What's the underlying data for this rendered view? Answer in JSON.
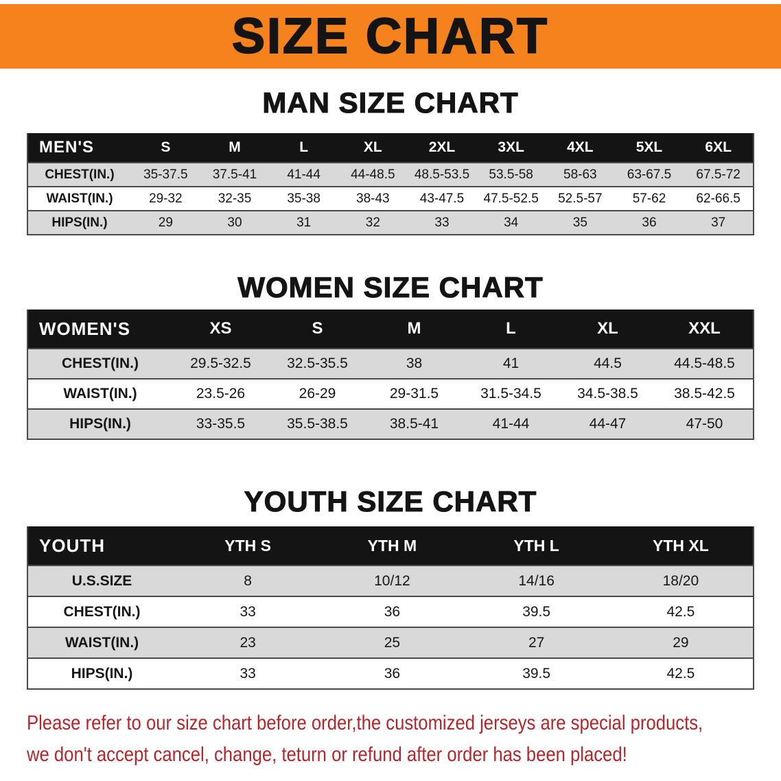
{
  "banner": {
    "title": "SIZE CHART"
  },
  "men": {
    "heading": "MAN SIZE CHART",
    "header": [
      "MEN'S",
      "S",
      "M",
      "L",
      "XL",
      "2XL",
      "3XL",
      "4XL",
      "5XL",
      "6XL"
    ],
    "rows": [
      {
        "label": "CHEST(IN.)",
        "values": [
          "35-37.5",
          "37.5-41",
          "41-44",
          "44-48.5",
          "48.5-53.5",
          "53.5-58",
          "58-63",
          "63-67.5",
          "67.5-72"
        ]
      },
      {
        "label": "WAIST(IN.)",
        "values": [
          "29-32",
          "32-35",
          "35-38",
          "38-43",
          "43-47.5",
          "47.5-52.5",
          "52.5-57",
          "57-62",
          "62-66.5"
        ]
      },
      {
        "label": "HIPS(IN.)",
        "values": [
          "29",
          "30",
          "31",
          "32",
          "33",
          "34",
          "35",
          "36",
          "37"
        ]
      }
    ]
  },
  "women": {
    "heading": "WOMEN SIZE CHART",
    "header": [
      "WOMEN'S",
      "XS",
      "S",
      "M",
      "L",
      "XL",
      "XXL"
    ],
    "rows": [
      {
        "label": "CHEST(IN.)",
        "values": [
          "29.5-32.5",
          "32.5-35.5",
          "38",
          "41",
          "44.5",
          "44.5-48.5"
        ]
      },
      {
        "label": "WAIST(IN.)",
        "values": [
          "23.5-26",
          "26-29",
          "29-31.5",
          "31.5-34.5",
          "34.5-38.5",
          "38.5-42.5"
        ]
      },
      {
        "label": "HIPS(IN.)",
        "values": [
          "33-35.5",
          "35.5-38.5",
          "38.5-41",
          "41-44",
          "44-47",
          "47-50"
        ]
      }
    ]
  },
  "youth": {
    "heading": "YOUTH SIZE CHART",
    "header": [
      "YOUTH",
      "YTH S",
      "YTH M",
      "YTH L",
      "YTH XL"
    ],
    "rows": [
      {
        "label": "U.S.SIZE",
        "values": [
          "8",
          "10/12",
          "14/16",
          "18/20"
        ]
      },
      {
        "label": "CHEST(IN.)",
        "values": [
          "33",
          "36",
          "39.5",
          "42.5"
        ]
      },
      {
        "label": "WAIST(IN.)",
        "values": [
          "23",
          "25",
          "27",
          "29"
        ]
      },
      {
        "label": "HIPS(IN.)",
        "values": [
          "33",
          "36",
          "39.5",
          "42.5"
        ]
      }
    ]
  },
  "disclaimer": {
    "line1": "Please refer to our size chart before order,the customized jerseys are special products,",
    "line2": "we don't accept cancel, change, teturn or refund after order has been placed!"
  },
  "colors": {
    "banner_bg": "#f6821e",
    "header_bg": "#141414",
    "stripe": "#d9d9d9",
    "disclaimer": "#b5262b"
  }
}
